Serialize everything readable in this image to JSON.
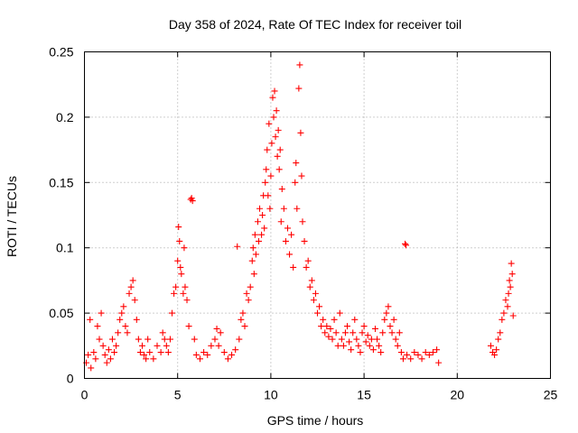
{
  "chart_data": {
    "type": "scatter",
    "title": "Day 358 of 2024, Rate Of TEC Index for receiver toil",
    "xlabel": "GPS time / hours",
    "ylabel": "ROTI / TECUs",
    "xlim": [
      0,
      25
    ],
    "ylim": [
      0,
      0.25
    ],
    "xticks": [
      0,
      5,
      10,
      15,
      20,
      25
    ],
    "xtick_labels": [
      "0",
      "5",
      "10",
      "15",
      "20",
      "25"
    ],
    "yticks": [
      0,
      0.05,
      0.1,
      0.15,
      0.2,
      0.25
    ],
    "ytick_labels": [
      "0",
      "0.05",
      "0.1",
      "0.15",
      "0.2",
      "0.25"
    ],
    "grid": true,
    "marker": "+",
    "color": "#ff0000",
    "series": [
      {
        "name": "ROTI",
        "points": [
          [
            0.1,
            0.012
          ],
          [
            0.2,
            0.018
          ],
          [
            0.3,
            0.045
          ],
          [
            0.35,
            0.008
          ],
          [
            0.5,
            0.02
          ],
          [
            0.6,
            0.015
          ],
          [
            0.7,
            0.04
          ],
          [
            0.8,
            0.03
          ],
          [
            0.9,
            0.05
          ],
          [
            1.0,
            0.025
          ],
          [
            1.1,
            0.018
          ],
          [
            1.2,
            0.012
          ],
          [
            1.3,
            0.022
          ],
          [
            1.4,
            0.015
          ],
          [
            1.5,
            0.03
          ],
          [
            1.6,
            0.02
          ],
          [
            1.7,
            0.025
          ],
          [
            1.8,
            0.035
          ],
          [
            1.9,
            0.045
          ],
          [
            2.0,
            0.05
          ],
          [
            2.1,
            0.055
          ],
          [
            2.2,
            0.04
          ],
          [
            2.3,
            0.035
          ],
          [
            2.4,
            0.065
          ],
          [
            2.5,
            0.07
          ],
          [
            2.6,
            0.075
          ],
          [
            2.7,
            0.06
          ],
          [
            2.8,
            0.045
          ],
          [
            2.9,
            0.03
          ],
          [
            3.0,
            0.02
          ],
          [
            3.1,
            0.025
          ],
          [
            3.2,
            0.018
          ],
          [
            3.3,
            0.015
          ],
          [
            3.4,
            0.03
          ],
          [
            3.5,
            0.02
          ],
          [
            3.7,
            0.015
          ],
          [
            3.9,
            0.025
          ],
          [
            4.1,
            0.02
          ],
          [
            4.2,
            0.035
          ],
          [
            4.3,
            0.03
          ],
          [
            4.4,
            0.025
          ],
          [
            4.5,
            0.02
          ],
          [
            4.6,
            0.03
          ],
          [
            4.7,
            0.05
          ],
          [
            4.8,
            0.065
          ],
          [
            4.9,
            0.07
          ],
          [
            5.0,
            0.09
          ],
          [
            5.05,
            0.116
          ],
          [
            5.1,
            0.105
          ],
          [
            5.15,
            0.085
          ],
          [
            5.2,
            0.08
          ],
          [
            5.3,
            0.065
          ],
          [
            5.35,
            0.1
          ],
          [
            5.4,
            0.07
          ],
          [
            5.5,
            0.06
          ],
          [
            5.6,
            0.04
          ],
          [
            5.7,
            0.137
          ],
          [
            5.75,
            0.138
          ],
          [
            5.8,
            0.136
          ],
          [
            5.9,
            0.03
          ],
          [
            6.0,
            0.018
          ],
          [
            6.2,
            0.015
          ],
          [
            6.4,
            0.02
          ],
          [
            6.6,
            0.018
          ],
          [
            6.8,
            0.025
          ],
          [
            7.0,
            0.03
          ],
          [
            7.1,
            0.038
          ],
          [
            7.2,
            0.025
          ],
          [
            7.3,
            0.035
          ],
          [
            7.5,
            0.02
          ],
          [
            7.7,
            0.015
          ],
          [
            7.9,
            0.018
          ],
          [
            8.1,
            0.022
          ],
          [
            8.2,
            0.101
          ],
          [
            8.3,
            0.03
          ],
          [
            8.4,
            0.045
          ],
          [
            8.5,
            0.05
          ],
          [
            8.6,
            0.04
          ],
          [
            8.7,
            0.065
          ],
          [
            8.8,
            0.06
          ],
          [
            8.9,
            0.07
          ],
          [
            9.0,
            0.09
          ],
          [
            9.05,
            0.1
          ],
          [
            9.1,
            0.08
          ],
          [
            9.15,
            0.11
          ],
          [
            9.2,
            0.095
          ],
          [
            9.3,
            0.12
          ],
          [
            9.35,
            0.105
          ],
          [
            9.4,
            0.13
          ],
          [
            9.5,
            0.11
          ],
          [
            9.55,
            0.125
          ],
          [
            9.6,
            0.14
          ],
          [
            9.65,
            0.115
          ],
          [
            9.7,
            0.15
          ],
          [
            9.75,
            0.16
          ],
          [
            9.8,
            0.175
          ],
          [
            9.85,
            0.14
          ],
          [
            9.9,
            0.195
          ],
          [
            9.95,
            0.13
          ],
          [
            10.0,
            0.155
          ],
          [
            10.05,
            0.18
          ],
          [
            10.1,
            0.215
          ],
          [
            10.15,
            0.2
          ],
          [
            10.2,
            0.22
          ],
          [
            10.25,
            0.185
          ],
          [
            10.3,
            0.205
          ],
          [
            10.35,
            0.17
          ],
          [
            10.4,
            0.19
          ],
          [
            10.45,
            0.16
          ],
          [
            10.5,
            0.175
          ],
          [
            10.55,
            0.12
          ],
          [
            10.6,
            0.145
          ],
          [
            10.7,
            0.13
          ],
          [
            10.8,
            0.105
          ],
          [
            10.9,
            0.115
          ],
          [
            11.0,
            0.095
          ],
          [
            11.1,
            0.11
          ],
          [
            11.2,
            0.085
          ],
          [
            11.3,
            0.15
          ],
          [
            11.35,
            0.165
          ],
          [
            11.4,
            0.13
          ],
          [
            11.5,
            0.222
          ],
          [
            11.55,
            0.24
          ],
          [
            11.6,
            0.188
          ],
          [
            11.65,
            0.155
          ],
          [
            11.7,
            0.12
          ],
          [
            11.8,
            0.105
          ],
          [
            11.9,
            0.085
          ],
          [
            12.0,
            0.09
          ],
          [
            12.1,
            0.07
          ],
          [
            12.2,
            0.075
          ],
          [
            12.3,
            0.06
          ],
          [
            12.4,
            0.065
          ],
          [
            12.5,
            0.05
          ],
          [
            12.6,
            0.055
          ],
          [
            12.7,
            0.04
          ],
          [
            12.8,
            0.045
          ],
          [
            12.9,
            0.035
          ],
          [
            13.0,
            0.04
          ],
          [
            13.1,
            0.032
          ],
          [
            13.2,
            0.038
          ],
          [
            13.3,
            0.03
          ],
          [
            13.4,
            0.045
          ],
          [
            13.5,
            0.035
          ],
          [
            13.6,
            0.025
          ],
          [
            13.7,
            0.05
          ],
          [
            13.8,
            0.03
          ],
          [
            13.9,
            0.025
          ],
          [
            14.0,
            0.035
          ],
          [
            14.1,
            0.04
          ],
          [
            14.2,
            0.028
          ],
          [
            14.3,
            0.022
          ],
          [
            14.4,
            0.035
          ],
          [
            14.5,
            0.045
          ],
          [
            14.6,
            0.03
          ],
          [
            14.7,
            0.025
          ],
          [
            14.8,
            0.02
          ],
          [
            14.9,
            0.035
          ],
          [
            15.0,
            0.04
          ],
          [
            15.1,
            0.028
          ],
          [
            15.2,
            0.033
          ],
          [
            15.3,
            0.025
          ],
          [
            15.4,
            0.03
          ],
          [
            15.5,
            0.022
          ],
          [
            15.6,
            0.038
          ],
          [
            15.7,
            0.03
          ],
          [
            15.8,
            0.025
          ],
          [
            15.9,
            0.02
          ],
          [
            16.0,
            0.035
          ],
          [
            16.1,
            0.045
          ],
          [
            16.2,
            0.05
          ],
          [
            16.3,
            0.055
          ],
          [
            16.4,
            0.04
          ],
          [
            16.5,
            0.035
          ],
          [
            16.6,
            0.045
          ],
          [
            16.7,
            0.03
          ],
          [
            16.8,
            0.025
          ],
          [
            16.9,
            0.035
          ],
          [
            17.0,
            0.02
          ],
          [
            17.1,
            0.015
          ],
          [
            17.2,
            0.103
          ],
          [
            17.25,
            0.102
          ],
          [
            17.3,
            0.018
          ],
          [
            17.5,
            0.015
          ],
          [
            17.7,
            0.02
          ],
          [
            17.9,
            0.018
          ],
          [
            18.1,
            0.015
          ],
          [
            18.3,
            0.02
          ],
          [
            18.5,
            0.018
          ],
          [
            18.7,
            0.02
          ],
          [
            18.9,
            0.022
          ],
          [
            19.0,
            0.012
          ],
          [
            21.8,
            0.025
          ],
          [
            21.9,
            0.02
          ],
          [
            22.0,
            0.018
          ],
          [
            22.1,
            0.022
          ],
          [
            22.2,
            0.03
          ],
          [
            22.3,
            0.035
          ],
          [
            22.4,
            0.045
          ],
          [
            22.5,
            0.05
          ],
          [
            22.6,
            0.06
          ],
          [
            22.7,
            0.055
          ],
          [
            22.75,
            0.065
          ],
          [
            22.8,
            0.075
          ],
          [
            22.85,
            0.07
          ],
          [
            22.9,
            0.088
          ],
          [
            22.95,
            0.08
          ],
          [
            23.0,
            0.048
          ]
        ]
      }
    ]
  }
}
